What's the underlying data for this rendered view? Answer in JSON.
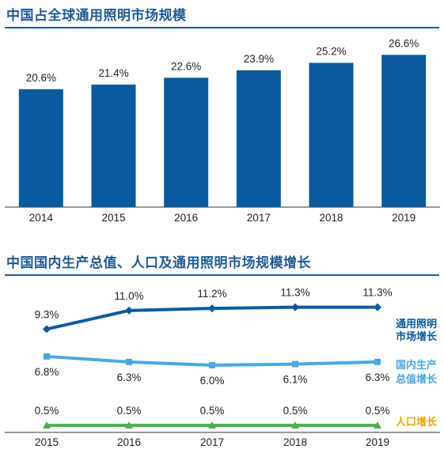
{
  "chart_data": [
    {
      "type": "bar",
      "title": "中国占全球通用照明市场规模",
      "categories": [
        "2014",
        "2015",
        "2016",
        "2017",
        "2018",
        "2019"
      ],
      "values": [
        20.6,
        21.4,
        22.6,
        23.9,
        25.2,
        26.6
      ],
      "value_labels": [
        "20.6%",
        "21.4%",
        "22.6%",
        "23.9%",
        "25.2%",
        "26.6%"
      ],
      "ylim": [
        0,
        29
      ],
      "color": "#0a5aa0",
      "grid": false
    },
    {
      "type": "line",
      "title": "中国国内生产总值、人口及通用照明市场规模增长",
      "x": [
        "2015",
        "2016",
        "2017",
        "2018",
        "2019"
      ],
      "ylim": [
        0,
        12
      ],
      "grid": false,
      "series": [
        {
          "name": "通用照明市场增长",
          "legend_lines": [
            "通用照明",
            "市场增长"
          ],
          "values": [
            9.3,
            11.0,
            11.2,
            11.3,
            11.3
          ],
          "labels": [
            "9.3%",
            "11.0%",
            "11.2%",
            "11.3%",
            "11.3%"
          ],
          "color": "#0a5aa0",
          "marker": "diamond",
          "label_pos": "above"
        },
        {
          "name": "国内生产总值增长",
          "legend_lines": [
            "国内生产",
            "总值增长"
          ],
          "values": [
            6.8,
            6.3,
            6.0,
            6.1,
            6.3
          ],
          "labels": [
            "6.8%",
            "6.3%",
            "6.0%",
            "6.1%",
            "6.3%"
          ],
          "color": "#4aa8e0",
          "marker": "square",
          "label_pos": "below"
        },
        {
          "name": "人口增长",
          "legend_lines": [
            "人口增长"
          ],
          "values": [
            0.5,
            0.5,
            0.5,
            0.5,
            0.5
          ],
          "labels": [
            "0.5%",
            "0.5%",
            "0.5%",
            "0.5%",
            "0.5%"
          ],
          "color": "#4caf50",
          "legend_color": "#e6a800",
          "marker": "triangle",
          "label_pos": "above"
        }
      ]
    }
  ]
}
